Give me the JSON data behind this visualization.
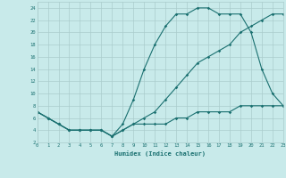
{
  "xlabel": "Humidex (Indice chaleur)",
  "bg_color": "#c8eaea",
  "grid_color": "#aacccc",
  "line_color": "#1a7070",
  "line1_x": [
    0,
    1,
    2,
    3,
    4,
    5,
    6,
    7,
    8,
    9,
    10,
    11,
    12,
    13,
    14,
    15,
    16,
    17,
    18,
    19,
    20,
    21,
    22,
    23
  ],
  "line1_y": [
    7,
    6,
    5,
    4,
    4,
    4,
    4,
    3,
    5,
    9,
    14,
    18,
    21,
    23,
    23,
    24,
    24,
    23,
    23,
    23,
    20,
    14,
    10,
    8
  ],
  "line2_x": [
    0,
    1,
    2,
    3,
    4,
    5,
    6,
    7,
    8,
    9,
    10,
    11,
    12,
    13,
    14,
    15,
    16,
    17,
    18,
    19,
    20,
    21,
    22,
    23
  ],
  "line2_y": [
    7,
    6,
    5,
    4,
    4,
    4,
    4,
    3,
    4,
    5,
    6,
    7,
    9,
    11,
    13,
    15,
    16,
    17,
    18,
    20,
    21,
    22,
    23,
    23
  ],
  "line3_x": [
    0,
    1,
    2,
    3,
    4,
    5,
    6,
    7,
    8,
    9,
    10,
    11,
    12,
    13,
    14,
    15,
    16,
    17,
    18,
    19,
    20,
    21,
    22,
    23
  ],
  "line3_y": [
    7,
    6,
    5,
    4,
    4,
    4,
    4,
    3,
    4,
    5,
    5,
    5,
    5,
    6,
    6,
    7,
    7,
    7,
    7,
    8,
    8,
    8,
    8,
    8
  ],
  "xlim": [
    0,
    23
  ],
  "ylim": [
    2,
    25
  ],
  "yticks": [
    2,
    4,
    6,
    8,
    10,
    12,
    14,
    16,
    18,
    20,
    22,
    24
  ],
  "xticks": [
    0,
    1,
    2,
    3,
    4,
    5,
    6,
    7,
    8,
    9,
    10,
    11,
    12,
    13,
    14,
    15,
    16,
    17,
    18,
    19,
    20,
    21,
    22,
    23
  ]
}
